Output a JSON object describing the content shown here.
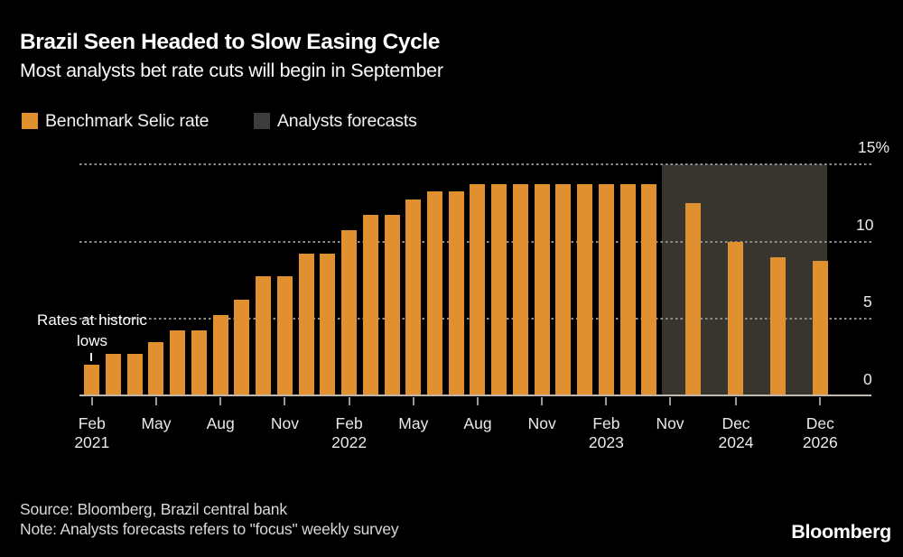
{
  "header": {
    "title": "Brazil Seen Headed to Slow Easing Cycle",
    "subtitle": "Most analysts bet rate cuts will begin in September"
  },
  "legend": {
    "items": [
      {
        "label": "Benchmark Selic rate",
        "color": "#e0902e"
      },
      {
        "label": "Analysts forecasts",
        "color": "#3c3c3c"
      }
    ]
  },
  "annotation": {
    "line1": "Rates at historic",
    "line2": "lows"
  },
  "y_axis": {
    "labels": [
      "15%",
      "10",
      "5",
      "0"
    ]
  },
  "x_axis": {
    "ticks": [
      {
        "line1": "Feb",
        "line2": "2021"
      },
      {
        "line1": "May",
        "line2": ""
      },
      {
        "line1": "Aug",
        "line2": ""
      },
      {
        "line1": "Nov",
        "line2": ""
      },
      {
        "line1": "Feb",
        "line2": "2022"
      },
      {
        "line1": "May",
        "line2": ""
      },
      {
        "line1": "Aug",
        "line2": ""
      },
      {
        "line1": "Nov",
        "line2": ""
      },
      {
        "line1": "Feb",
        "line2": "2023"
      },
      {
        "line1": "Nov",
        "line2": ""
      },
      {
        "line1": "Dec",
        "line2": "2024"
      },
      {
        "line1": "Dec",
        "line2": "2026"
      }
    ]
  },
  "footer": {
    "source": "Source: Bloomberg, Brazil central bank",
    "note": "Note: Analysts forecasts refers to \"focus\" weekly survey",
    "logo": "Bloomberg"
  },
  "colors": {
    "background": "#000000",
    "bar_orange": "#e0902e",
    "forecast_region_gray": "#38352f",
    "gridline_gray": "#8f8f8f",
    "axis_line": "#bdb7ad",
    "tick_gray": "#9a9a9a"
  },
  "chart_data": {
    "type": "bar",
    "title": "Brazil Seen Headed to Slow Easing Cycle",
    "subtitle": "Most analysts bet rate cuts will begin in September",
    "ylabel": "",
    "xlabel": "",
    "ylim": [
      0,
      15
    ],
    "grid": "dashed horizontal at 5, 10, 15",
    "legend_position": "top-left",
    "series": [
      {
        "name": "Benchmark Selic rate",
        "x": [
          "Feb 2021",
          "Mar 2021",
          "Apr 2021",
          "May 2021",
          "Jun 2021",
          "Jul 2021",
          "Aug 2021",
          "Sep 2021",
          "Oct 2021",
          "Nov 2021",
          "Dec 2021",
          "Jan 2022",
          "Feb 2022",
          "Mar 2022",
          "Apr 2022",
          "May 2022",
          "Jun 2022",
          "Jul 2022",
          "Aug 2022",
          "Sep 2022",
          "Oct 2022",
          "Nov 2022",
          "Dec 2022",
          "Jan 2023",
          "Feb 2023",
          "Mar 2023",
          "Apr 2023"
        ],
        "values": [
          2.0,
          2.75,
          2.75,
          3.5,
          4.25,
          4.25,
          5.25,
          6.25,
          7.75,
          7.75,
          9.25,
          9.25,
          10.75,
          11.75,
          11.75,
          12.75,
          13.25,
          13.25,
          13.75,
          13.75,
          13.75,
          13.75,
          13.75,
          13.75,
          13.75,
          13.75,
          13.75
        ]
      },
      {
        "name": "Analysts forecasts",
        "x": [
          "Dec 2023",
          "Dec 2024",
          "Dec 2025",
          "Dec 2026"
        ],
        "values": [
          12.5,
          10.0,
          9.0,
          8.75
        ],
        "note": "orange bars drawn inside shaded forecast region"
      }
    ]
  }
}
